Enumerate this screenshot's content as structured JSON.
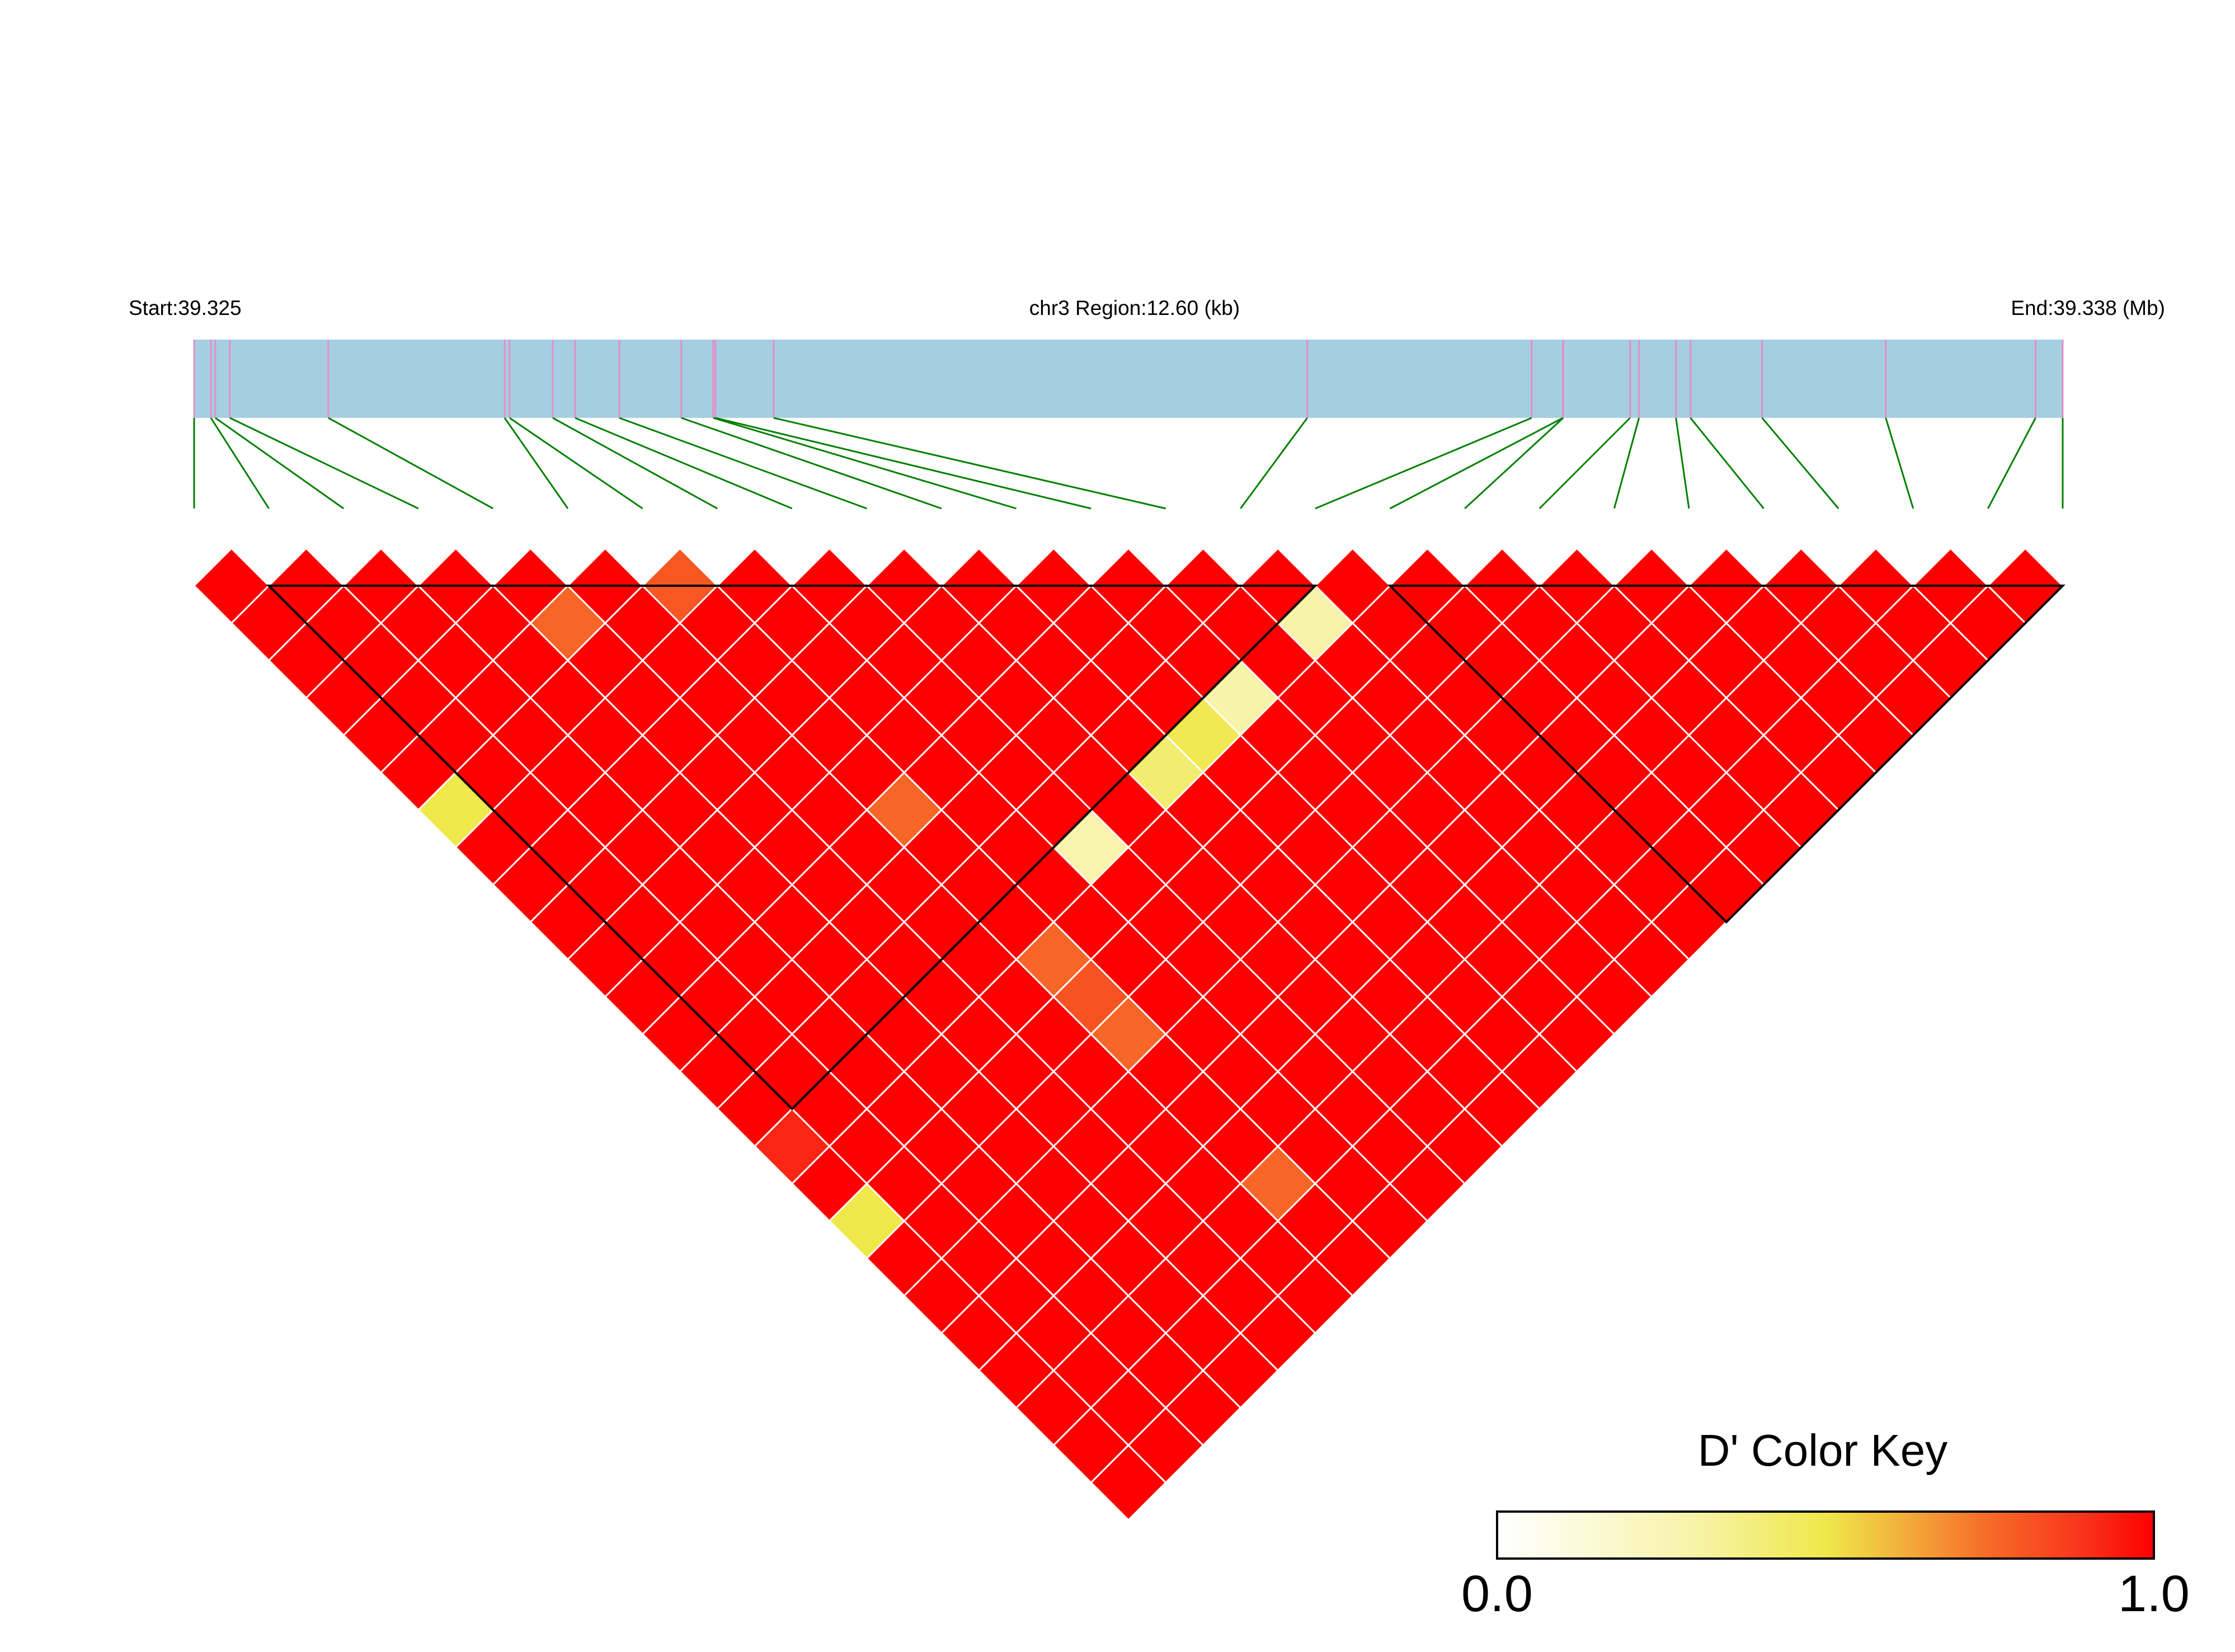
{
  "header": {
    "start_label": "Start:39.325",
    "region_label": "chr3 Region:12.60 (kb)",
    "end_label": "End:39.338 (Mb)"
  },
  "color_key": {
    "title": "D' Color Key",
    "min_label": "0.0",
    "max_label": "1.0",
    "stops": [
      [
        0.0,
        "#FFFFFF"
      ],
      [
        0.3,
        "#F7F3A8"
      ],
      [
        0.5,
        "#EFE84A"
      ],
      [
        0.6,
        "#F2B83E"
      ],
      [
        0.75,
        "#F76A28"
      ],
      [
        0.9,
        "#F8301A"
      ],
      [
        1.0,
        "#FF0000"
      ]
    ]
  },
  "colors": {
    "gene_track": "#A6CEE3",
    "snp_tick": "#E48FC6",
    "connector": "#008000",
    "cell_border": "#FFFFFF",
    "block_outline": "#000000"
  },
  "chart_data": {
    "type": "heatmap",
    "measure": "D'",
    "chromosome": "chr3",
    "region_start_mb": 39.325,
    "region_end_mb": 39.338,
    "region_size_kb": 12.6,
    "snp_positions_mb": [
      39.325,
      39.325113,
      39.325143,
      39.325241,
      39.325905,
      39.327094,
      39.327127,
      39.327418,
      39.327569,
      39.327867,
      39.328285,
      39.3285,
      39.328515,
      39.328908,
      39.332506,
      39.334019,
      39.33423,
      39.334232,
      39.334683,
      39.334743,
      39.334992,
      39.33509,
      39.335573,
      39.336407,
      39.337417,
      39.3376
    ],
    "value_range": [
      0,
      1
    ],
    "all_other_pairs_value": 1.0,
    "pair_values": [
      {
        "snp_a": 6,
        "snp_b": 7,
        "value": 0.8
      },
      {
        "snp_a": 4,
        "snp_b": 6,
        "value": 0.76
      },
      {
        "snp_a": 14,
        "snp_b": 16,
        "value": 0.3
      },
      {
        "snp_a": 12,
        "snp_b": 16,
        "value": 0.3
      },
      {
        "snp_a": 11,
        "snp_b": 16,
        "value": 0.48
      },
      {
        "snp_a": 10,
        "snp_b": 16,
        "value": 0.42
      },
      {
        "snp_a": 0,
        "snp_b": 7,
        "value": 0.5
      },
      {
        "snp_a": 6,
        "snp_b": 13,
        "value": 0.76
      },
      {
        "snp_a": 8,
        "snp_b": 16,
        "value": 0.28
      },
      {
        "snp_a": 6,
        "snp_b": 17,
        "value": 0.76
      },
      {
        "snp_a": 6,
        "snp_b": 18,
        "value": 0.81
      },
      {
        "snp_a": 6,
        "snp_b": 19,
        "value": 0.76
      },
      {
        "snp_a": 0,
        "snp_b": 16,
        "value": 0.92
      },
      {
        "snp_a": 0,
        "snp_b": 18,
        "value": 0.5
      },
      {
        "snp_a": 6,
        "snp_b": 23,
        "value": 0.76
      }
    ],
    "blocks": [
      {
        "first_snp": 1,
        "last_snp": 15
      },
      {
        "first_snp": 16,
        "last_snp": 25
      }
    ]
  }
}
